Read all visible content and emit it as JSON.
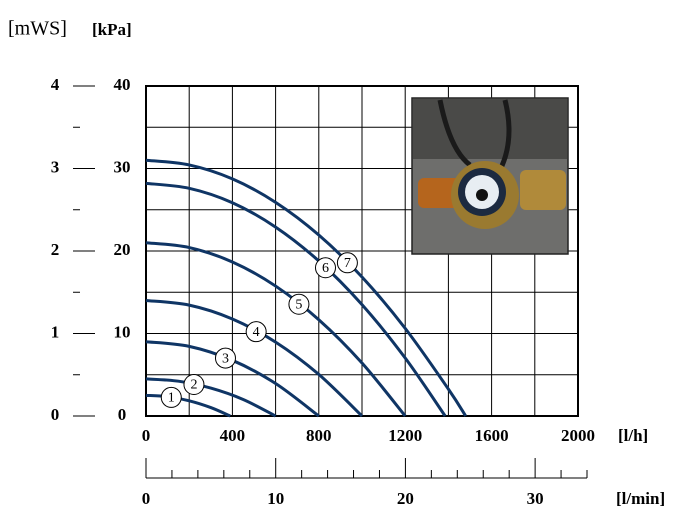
{
  "chart_data": {
    "type": "line",
    "y2_label": "[mWS]",
    "y_label": "[kPa]",
    "x_label": "[l/h]",
    "x2_label": "[l/min]",
    "xlim": [
      0,
      2000
    ],
    "xticks": [
      0,
      400,
      800,
      1200,
      1600,
      2000
    ],
    "xminorticks": [
      200,
      600,
      1000,
      1400,
      1800
    ],
    "ylim": [
      0,
      40
    ],
    "yticks": [
      0,
      10,
      20,
      30,
      40
    ],
    "yminorticks": [
      5,
      15,
      25,
      35
    ],
    "y2lim": [
      0,
      4
    ],
    "y2ticks": [
      0,
      1,
      2,
      3,
      4
    ],
    "y2minorticks": [
      0.5,
      1.5,
      2.5,
      3.5
    ],
    "x2lim": [
      0,
      34
    ],
    "x2ticks": [
      0,
      10,
      20,
      30
    ],
    "x2minorticks": [
      2,
      4,
      6,
      8,
      12,
      14,
      16,
      18,
      22,
      24,
      26,
      28,
      32,
      34
    ],
    "grid": true,
    "series": [
      {
        "name": "1",
        "color": "#0f3565",
        "x": [
          0,
          100,
          200,
          300,
          390
        ],
        "values": [
          2.5,
          2.34,
          1.84,
          1.02,
          0
        ]
      },
      {
        "name": "2",
        "color": "#0f3565",
        "x": [
          0,
          150,
          300,
          450,
          600
        ],
        "values": [
          4.5,
          4.22,
          3.38,
          2.0,
          0
        ]
      },
      {
        "name": "3",
        "color": "#0f3565",
        "x": [
          0,
          200,
          400,
          600,
          800
        ],
        "values": [
          9,
          8.44,
          6.75,
          3.94,
          0
        ]
      },
      {
        "name": "4",
        "color": "#0f3565",
        "x": [
          0,
          200,
          400,
          600,
          800,
          1000
        ],
        "values": [
          14,
          13.44,
          11.76,
          8.96,
          5.04,
          0
        ]
      },
      {
        "name": "5",
        "color": "#0f3565",
        "x": [
          0,
          200,
          400,
          600,
          800,
          1000,
          1200
        ],
        "values": [
          21,
          20.42,
          18.67,
          15.75,
          11.67,
          6.42,
          0
        ]
      },
      {
        "name": "6",
        "color": "#0f3565",
        "x": [
          0,
          200,
          400,
          600,
          800,
          1000,
          1200,
          1385
        ],
        "values": [
          28.2,
          27.6,
          25.85,
          22.9,
          18.79,
          13.5,
          7.03,
          0
        ]
      },
      {
        "name": "7",
        "color": "#0f3565",
        "x": [
          0,
          200,
          400,
          600,
          800,
          1000,
          1200,
          1400,
          1480
        ],
        "values": [
          31,
          30.43,
          28.74,
          25.9,
          21.94,
          16.85,
          10.62,
          3.26,
          0
        ]
      }
    ]
  }
}
